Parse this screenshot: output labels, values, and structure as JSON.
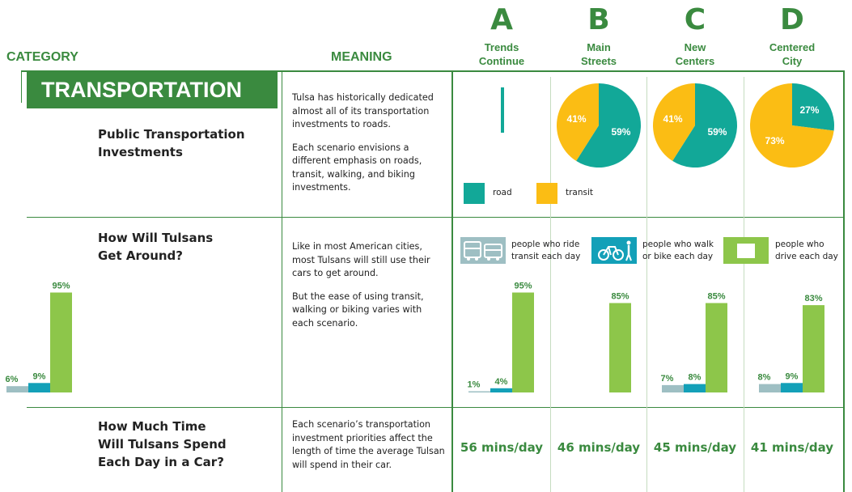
{
  "headers": {
    "category": "CATEGORY",
    "meaning": "MEANING",
    "columns": [
      {
        "letter": "A",
        "name_line1": "Trends",
        "name_line2": "Continue"
      },
      {
        "letter": "B",
        "name_line1": "Main",
        "name_line2": "Streets"
      },
      {
        "letter": "C",
        "name_line1": "New",
        "name_line2": "Centers"
      },
      {
        "letter": "D",
        "name_line1": "Centered",
        "name_line2": "City"
      }
    ]
  },
  "section_title": "TRANSPORTATION",
  "rows": [
    {
      "title_line1": "Public Transportation",
      "title_line2": "Investments",
      "meaning_p1": "Tulsa has historically dedicated almost all of its transportation investments to roads.",
      "meaning_p2": "Each scenario envisions a different emphasis on roads, transit, walking, and biking investments."
    },
    {
      "title_line1": "How Will Tulsans",
      "title_line2": "Get Around?",
      "meaning_p1": "Like in most American cities, most Tulsans will still use their cars to get around.",
      "meaning_p2": "But the ease of using transit, walking or biking varies with each scenario."
    },
    {
      "title_line1": "How Much Time",
      "title_line2": "Will Tulsans Spend",
      "title_line3": "Each Day in a Car?",
      "meaning_p1": "Each scenario’s transportation investment priorities affect the length of time the average Tulsan will spend in their car."
    }
  ],
  "pie_legend": {
    "road": "road",
    "transit": "transit"
  },
  "bar_legend": {
    "transit": "people who ride transit each day",
    "walk": "people who walk or bike each day",
    "drive": "people who drive each day"
  },
  "colors": {
    "green": "#3a8a3f",
    "road": "#12a898",
    "transit": "#fbbd14",
    "bar_transit": "#9ebfc3",
    "bar_walk": "#13a0b8",
    "bar_drive": "#8dc64a"
  },
  "minutes": [
    "56 mins/day",
    "46 mins/day",
    "45 mins/day",
    "41 mins/day"
  ],
  "chart_data": [
    {
      "type": "pie",
      "categories": [
        "road",
        "transit"
      ],
      "series": [
        {
          "name": "A",
          "values": [
            100,
            0
          ]
        },
        {
          "name": "B",
          "values": [
            59,
            41
          ]
        },
        {
          "name": "C",
          "values": [
            59,
            41
          ]
        },
        {
          "name": "D",
          "values": [
            27,
            73
          ]
        }
      ]
    },
    {
      "type": "bar",
      "categories": [
        "people who ride transit each day",
        "people who walk or bike each day",
        "people who drive each day"
      ],
      "series": [
        {
          "name": "A",
          "values": [
            1,
            4,
            95
          ]
        },
        {
          "name": "B",
          "values": [
            null,
            null,
            85
          ]
        },
        {
          "name": "C",
          "values": [
            7,
            8,
            85
          ]
        },
        {
          "name": "D",
          "values": [
            8,
            9,
            83
          ]
        },
        {
          "name": "current",
          "values": [
            6,
            9,
            95
          ]
        }
      ],
      "ylim": [
        0,
        100
      ]
    }
  ]
}
